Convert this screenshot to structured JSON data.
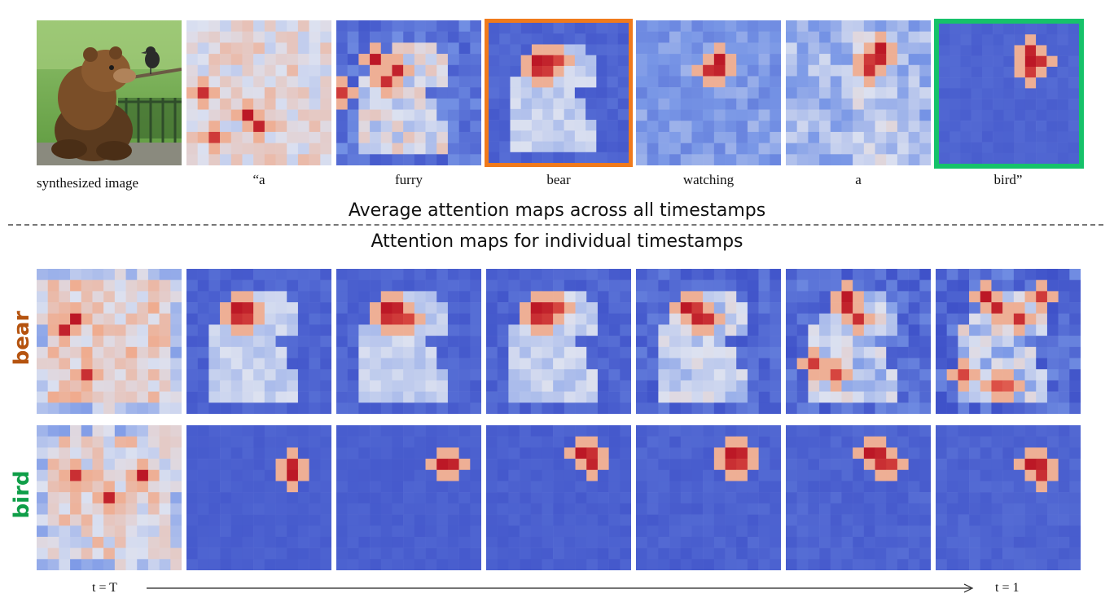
{
  "figure": {
    "top_captions": [
      "synthesized image",
      "“a",
      "furry",
      "bear",
      "watching",
      "a",
      "bird”"
    ],
    "heading_average": "Average attention maps across all timestamps",
    "heading_individual": "Attention maps for individual  timestamps",
    "row_labels": [
      "bear",
      "bird"
    ],
    "t_start": "t = T",
    "t_end": "t = 1",
    "colors": {
      "bear_label": "#b5530f",
      "bird_label": "#0f9e48",
      "highlight_bear": "#f07a1c",
      "highlight_bird": "#16c26a",
      "cold": "#3f52c9",
      "hot": "#b50d1f"
    }
  },
  "synthesized_image": {
    "description_icon": "bear-watching-bird-photo"
  }
}
